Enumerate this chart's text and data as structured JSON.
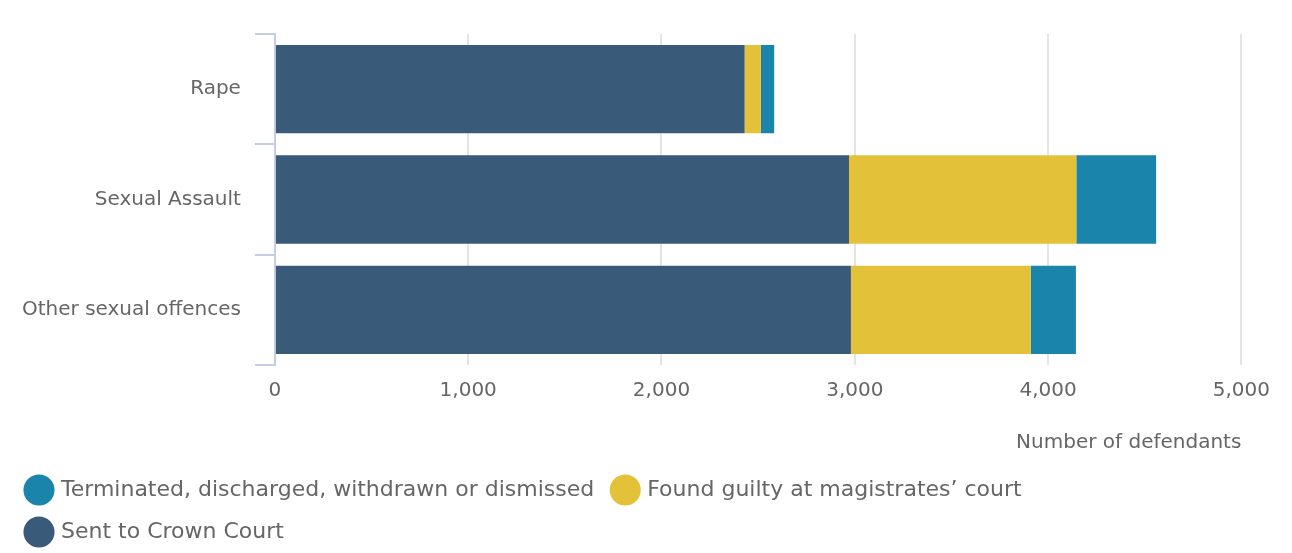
{
  "chart_data": {
    "type": "bar",
    "orientation": "horizontal",
    "stacked": true,
    "categories": [
      "Rape",
      "Sexual Assault",
      "Other sexual offences"
    ],
    "series": [
      {
        "name": "Sent to Crown Court",
        "color": "#3a5a7a",
        "values": [
          2430,
          2970,
          2980
        ]
      },
      {
        "name": "Found guilty at magistrates’ court",
        "color": "#e3c23a",
        "values": [
          84,
          1176,
          930
        ]
      },
      {
        "name": "Terminated, discharged, withdrawn or dismissed",
        "color": "#1a84ab",
        "values": [
          69,
          413,
          234
        ]
      }
    ],
    "xlabel": "Number of defendants",
    "xlim": [
      0,
      5000
    ],
    "xticks": [
      0,
      {
        "value": 1000,
        "label": "1,000"
      },
      {
        "value": 2000,
        "label": "2,000"
      },
      {
        "value": 3000,
        "label": "3,000"
      },
      {
        "value": 4000,
        "label": "4,000"
      },
      {
        "value": 5000,
        "label": "5,000"
      }
    ],
    "grid": "x",
    "legend": "bottom"
  }
}
